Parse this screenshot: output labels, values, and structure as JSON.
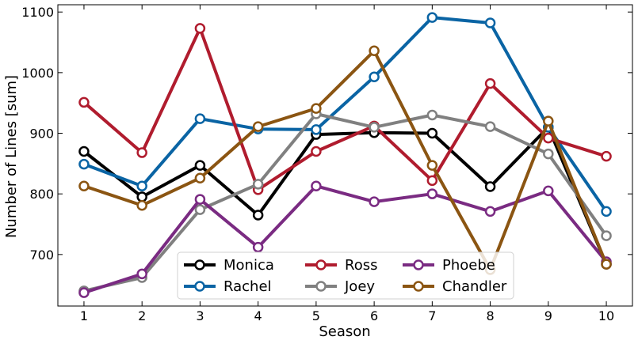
{
  "chart_data": {
    "type": "line",
    "xlabel": "Season",
    "ylabel": "Number of Lines [sum]",
    "x": [
      1,
      2,
      3,
      4,
      5,
      6,
      7,
      8,
      9,
      10
    ],
    "xlim": [
      0.55,
      10.45
    ],
    "ylim": [
      615,
      1112
    ],
    "yticks": [
      700,
      800,
      900,
      1000,
      1100
    ],
    "grid": false,
    "legend_position": "lower-center",
    "series": [
      {
        "name": "Monica",
        "color": "#000000",
        "values": [
          870,
          795,
          847,
          765,
          898,
          901,
          900,
          812,
          910,
          684
        ]
      },
      {
        "name": "Rachel",
        "color": "#0a64a4",
        "values": [
          849,
          813,
          924,
          907,
          906,
          993,
          1091,
          1082,
          910,
          771
        ]
      },
      {
        "name": "Ross",
        "color": "#b01c2e",
        "values": [
          951,
          868,
          1073,
          807,
          870,
          912,
          822,
          982,
          892,
          862
        ]
      },
      {
        "name": "Joey",
        "color": "#808080",
        "values": [
          640,
          662,
          774,
          816,
          932,
          910,
          930,
          911,
          866,
          731
        ]
      },
      {
        "name": "Phoebe",
        "color": "#7a2b82",
        "values": [
          637,
          668,
          791,
          712,
          813,
          787,
          800,
          771,
          805,
          688
        ]
      },
      {
        "name": "Chandler",
        "color": "#8b5512",
        "values": [
          813,
          781,
          826,
          911,
          941,
          1036,
          847,
          675,
          920,
          684
        ]
      }
    ]
  }
}
